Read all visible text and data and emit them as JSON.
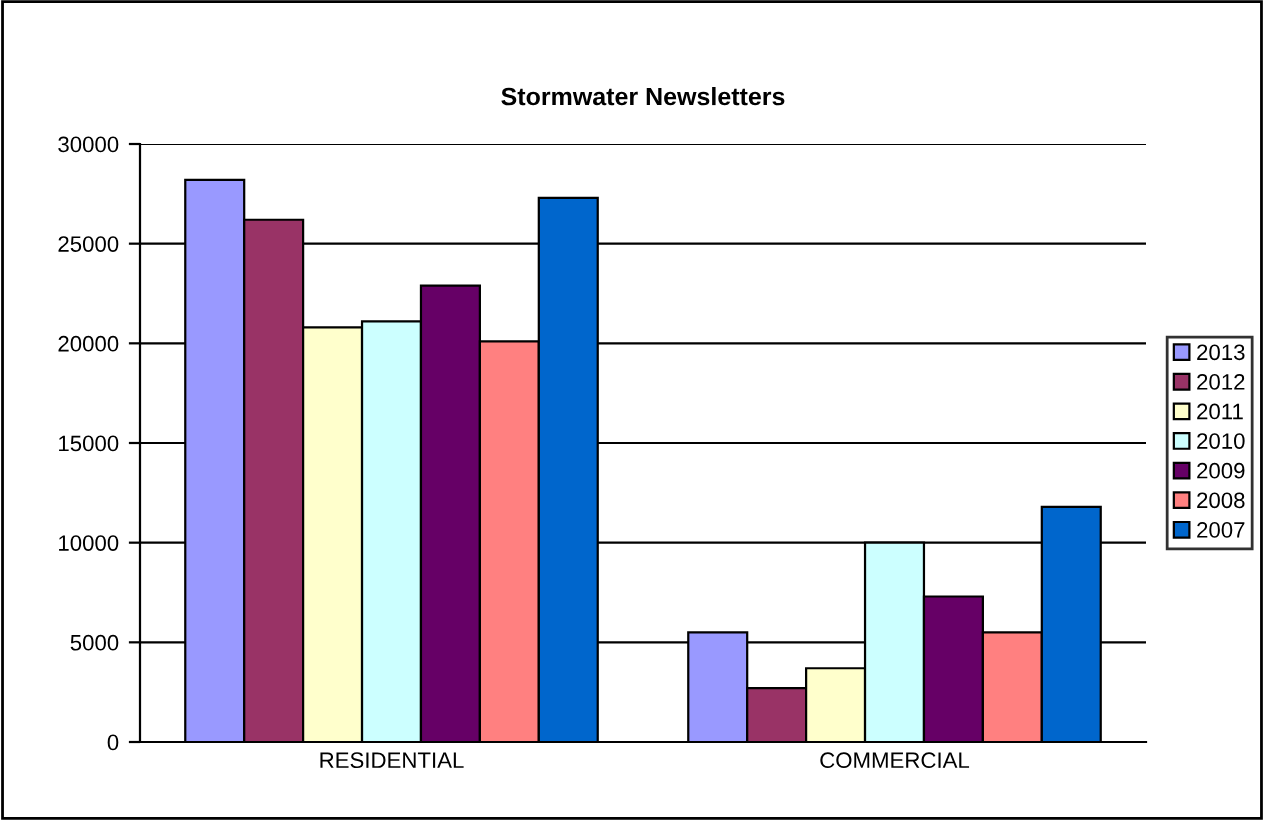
{
  "chart_data": {
    "type": "bar",
    "title": "Stormwater Newsletters",
    "categories": [
      "RESIDENTIAL",
      "COMMERCIAL"
    ],
    "series": [
      {
        "name": "2013",
        "color": "#9999ff",
        "values": [
          28200,
          5500
        ]
      },
      {
        "name": "2012",
        "color": "#993366",
        "values": [
          26200,
          2700
        ]
      },
      {
        "name": "2011",
        "color": "#ffffcc",
        "values": [
          20800,
          3700
        ]
      },
      {
        "name": "2010",
        "color": "#ccffff",
        "values": [
          21100,
          10000
        ]
      },
      {
        "name": "2009",
        "color": "#660066",
        "values": [
          22900,
          7300
        ]
      },
      {
        "name": "2008",
        "color": "#ff8080",
        "values": [
          20100,
          5500
        ]
      },
      {
        "name": "2007",
        "color": "#0066cc",
        "values": [
          27300,
          11800
        ]
      }
    ],
    "ylim": [
      0,
      30000
    ],
    "yticks": [
      0,
      5000,
      10000,
      15000,
      20000,
      25000,
      30000
    ],
    "grid": "y",
    "legend": "right"
  }
}
